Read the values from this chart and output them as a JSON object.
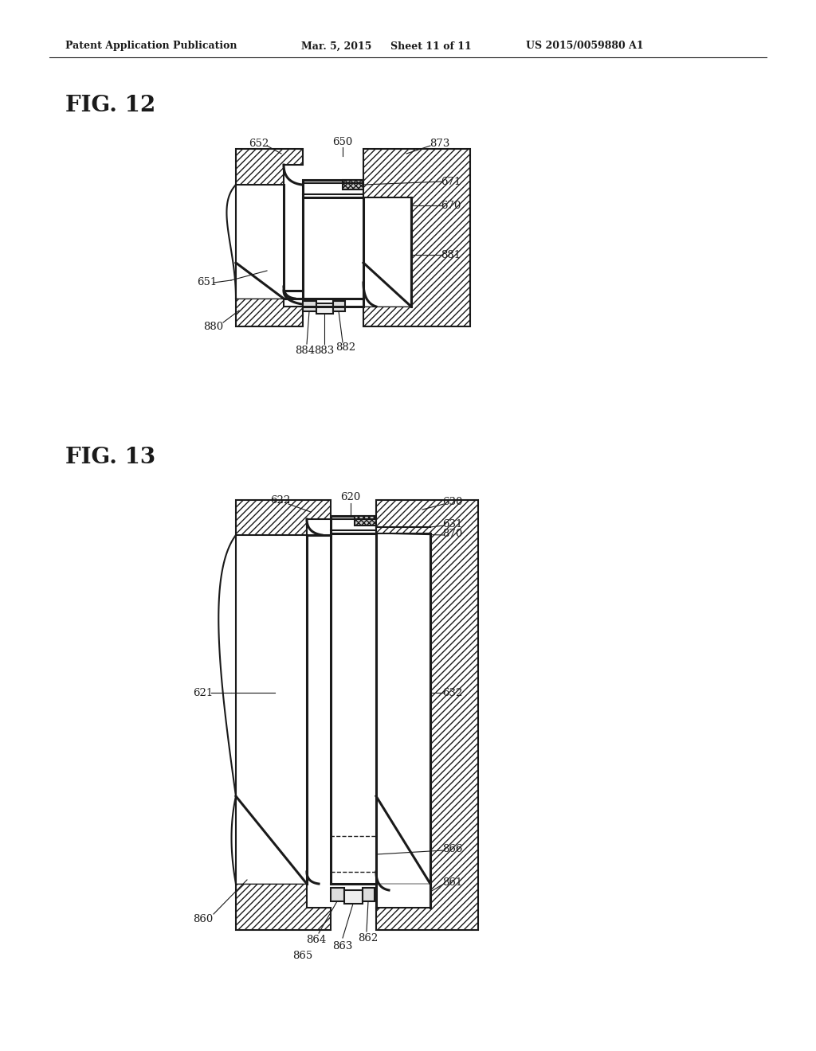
{
  "bg_color": "#ffffff",
  "line_color": "#1a1a1a",
  "fig12_title": "FIG. 12",
  "fig13_title": "FIG. 13",
  "header_left": "Patent Application Publication",
  "header_date": "Mar. 5, 2015",
  "header_sheet": "Sheet 11 of 11",
  "header_patent": "US 2015/0059880 A1",
  "label_fontsize": 9.5,
  "title_fontsize": 20,
  "header_fontsize": 9,
  "lw_main": 1.5,
  "lw_thick": 2.2,
  "lw_thin": 0.8
}
